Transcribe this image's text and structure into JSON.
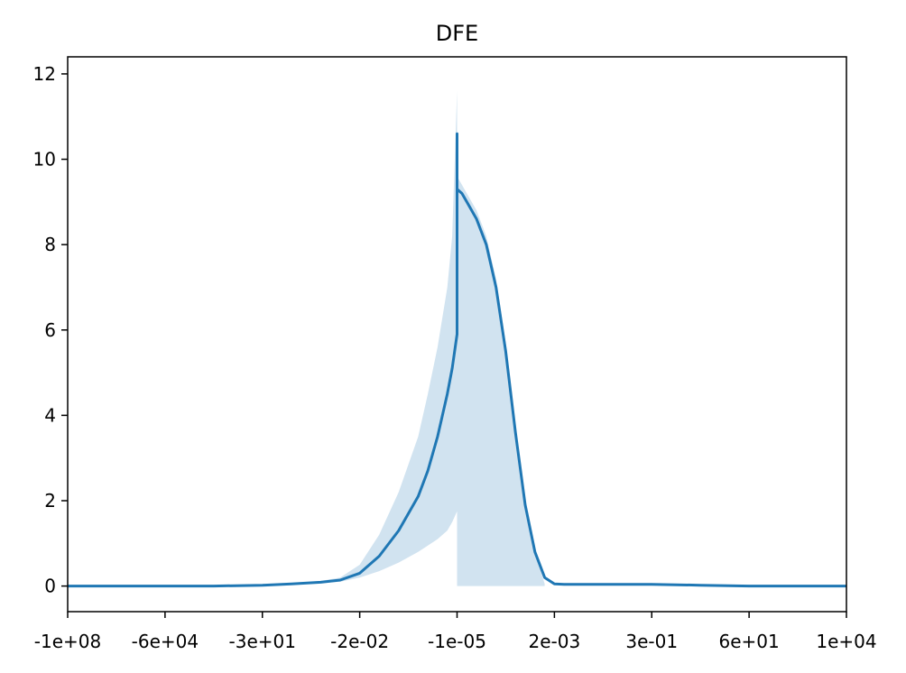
{
  "chart_data": {
    "type": "line",
    "title": "DFE",
    "xlabel": "",
    "ylabel": "",
    "grid": false,
    "legend": "none",
    "line_color": "#1f77b4",
    "band_color": "#d1e3f0",
    "xlim": [
      0,
      8
    ],
    "ylim": [
      -0.6,
      12.4
    ],
    "x_tick_positions": [
      0,
      1,
      2,
      3,
      4,
      5,
      6,
      7,
      8
    ],
    "x_tick_labels": [
      "-1e+08",
      "-6e+04",
      "-3e+01",
      "-2e-02",
      "-1e-05",
      "2e-03",
      "3e-01",
      "6e+01",
      "1e+04"
    ],
    "y_ticks": [
      0,
      2,
      4,
      6,
      8,
      10,
      12
    ],
    "y_tick_labels": [
      "0",
      "2",
      "4",
      "6",
      "8",
      "10",
      "12"
    ],
    "series": [
      {
        "x": [
          0,
          1,
          1.5,
          2,
          2.3,
          2.6,
          2.8,
          3.0,
          3.2,
          3.4,
          3.6,
          3.7,
          3.8,
          3.9,
          3.95,
          4.0,
          4.0,
          4.0,
          4.05,
          4.1,
          4.2,
          4.3,
          4.4,
          4.5,
          4.6,
          4.7,
          4.8,
          4.9,
          5.0,
          5.1,
          5.2,
          5.5,
          6.0,
          6.5,
          7.0,
          8.0
        ],
        "y": [
          0,
          0,
          0,
          0.02,
          0.05,
          0.09,
          0.14,
          0.3,
          0.7,
          1.3,
          2.1,
          2.7,
          3.5,
          4.5,
          5.1,
          5.9,
          10.6,
          9.3,
          9.2,
          9.0,
          8.6,
          8.0,
          7.0,
          5.5,
          3.6,
          1.9,
          0.8,
          0.2,
          0.05,
          0.04,
          0.04,
          0.04,
          0.04,
          0.02,
          0.0,
          0.0
        ]
      }
    ],
    "band": {
      "x": [
        2.3,
        2.6,
        2.8,
        3.0,
        3.2,
        3.4,
        3.6,
        3.7,
        3.8,
        3.9,
        3.95,
        4.0,
        4.0,
        4.05,
        4.1,
        4.2,
        4.3,
        4.4,
        4.5,
        4.6,
        4.7,
        4.8,
        4.9
      ],
      "lower": [
        0.05,
        0.07,
        0.1,
        0.2,
        0.35,
        0.55,
        0.8,
        0.95,
        1.1,
        1.3,
        1.5,
        1.75,
        0,
        0,
        0,
        0,
        0,
        0,
        0,
        0,
        0,
        0,
        0
      ],
      "upper": [
        0.06,
        0.12,
        0.2,
        0.5,
        1.2,
        2.2,
        3.5,
        4.5,
        5.6,
        7.0,
        8.2,
        11.6,
        9.6,
        9.4,
        9.2,
        8.8,
        8.2,
        7.2,
        5.7,
        3.8,
        2.0,
        0.8,
        0.05
      ]
    }
  }
}
